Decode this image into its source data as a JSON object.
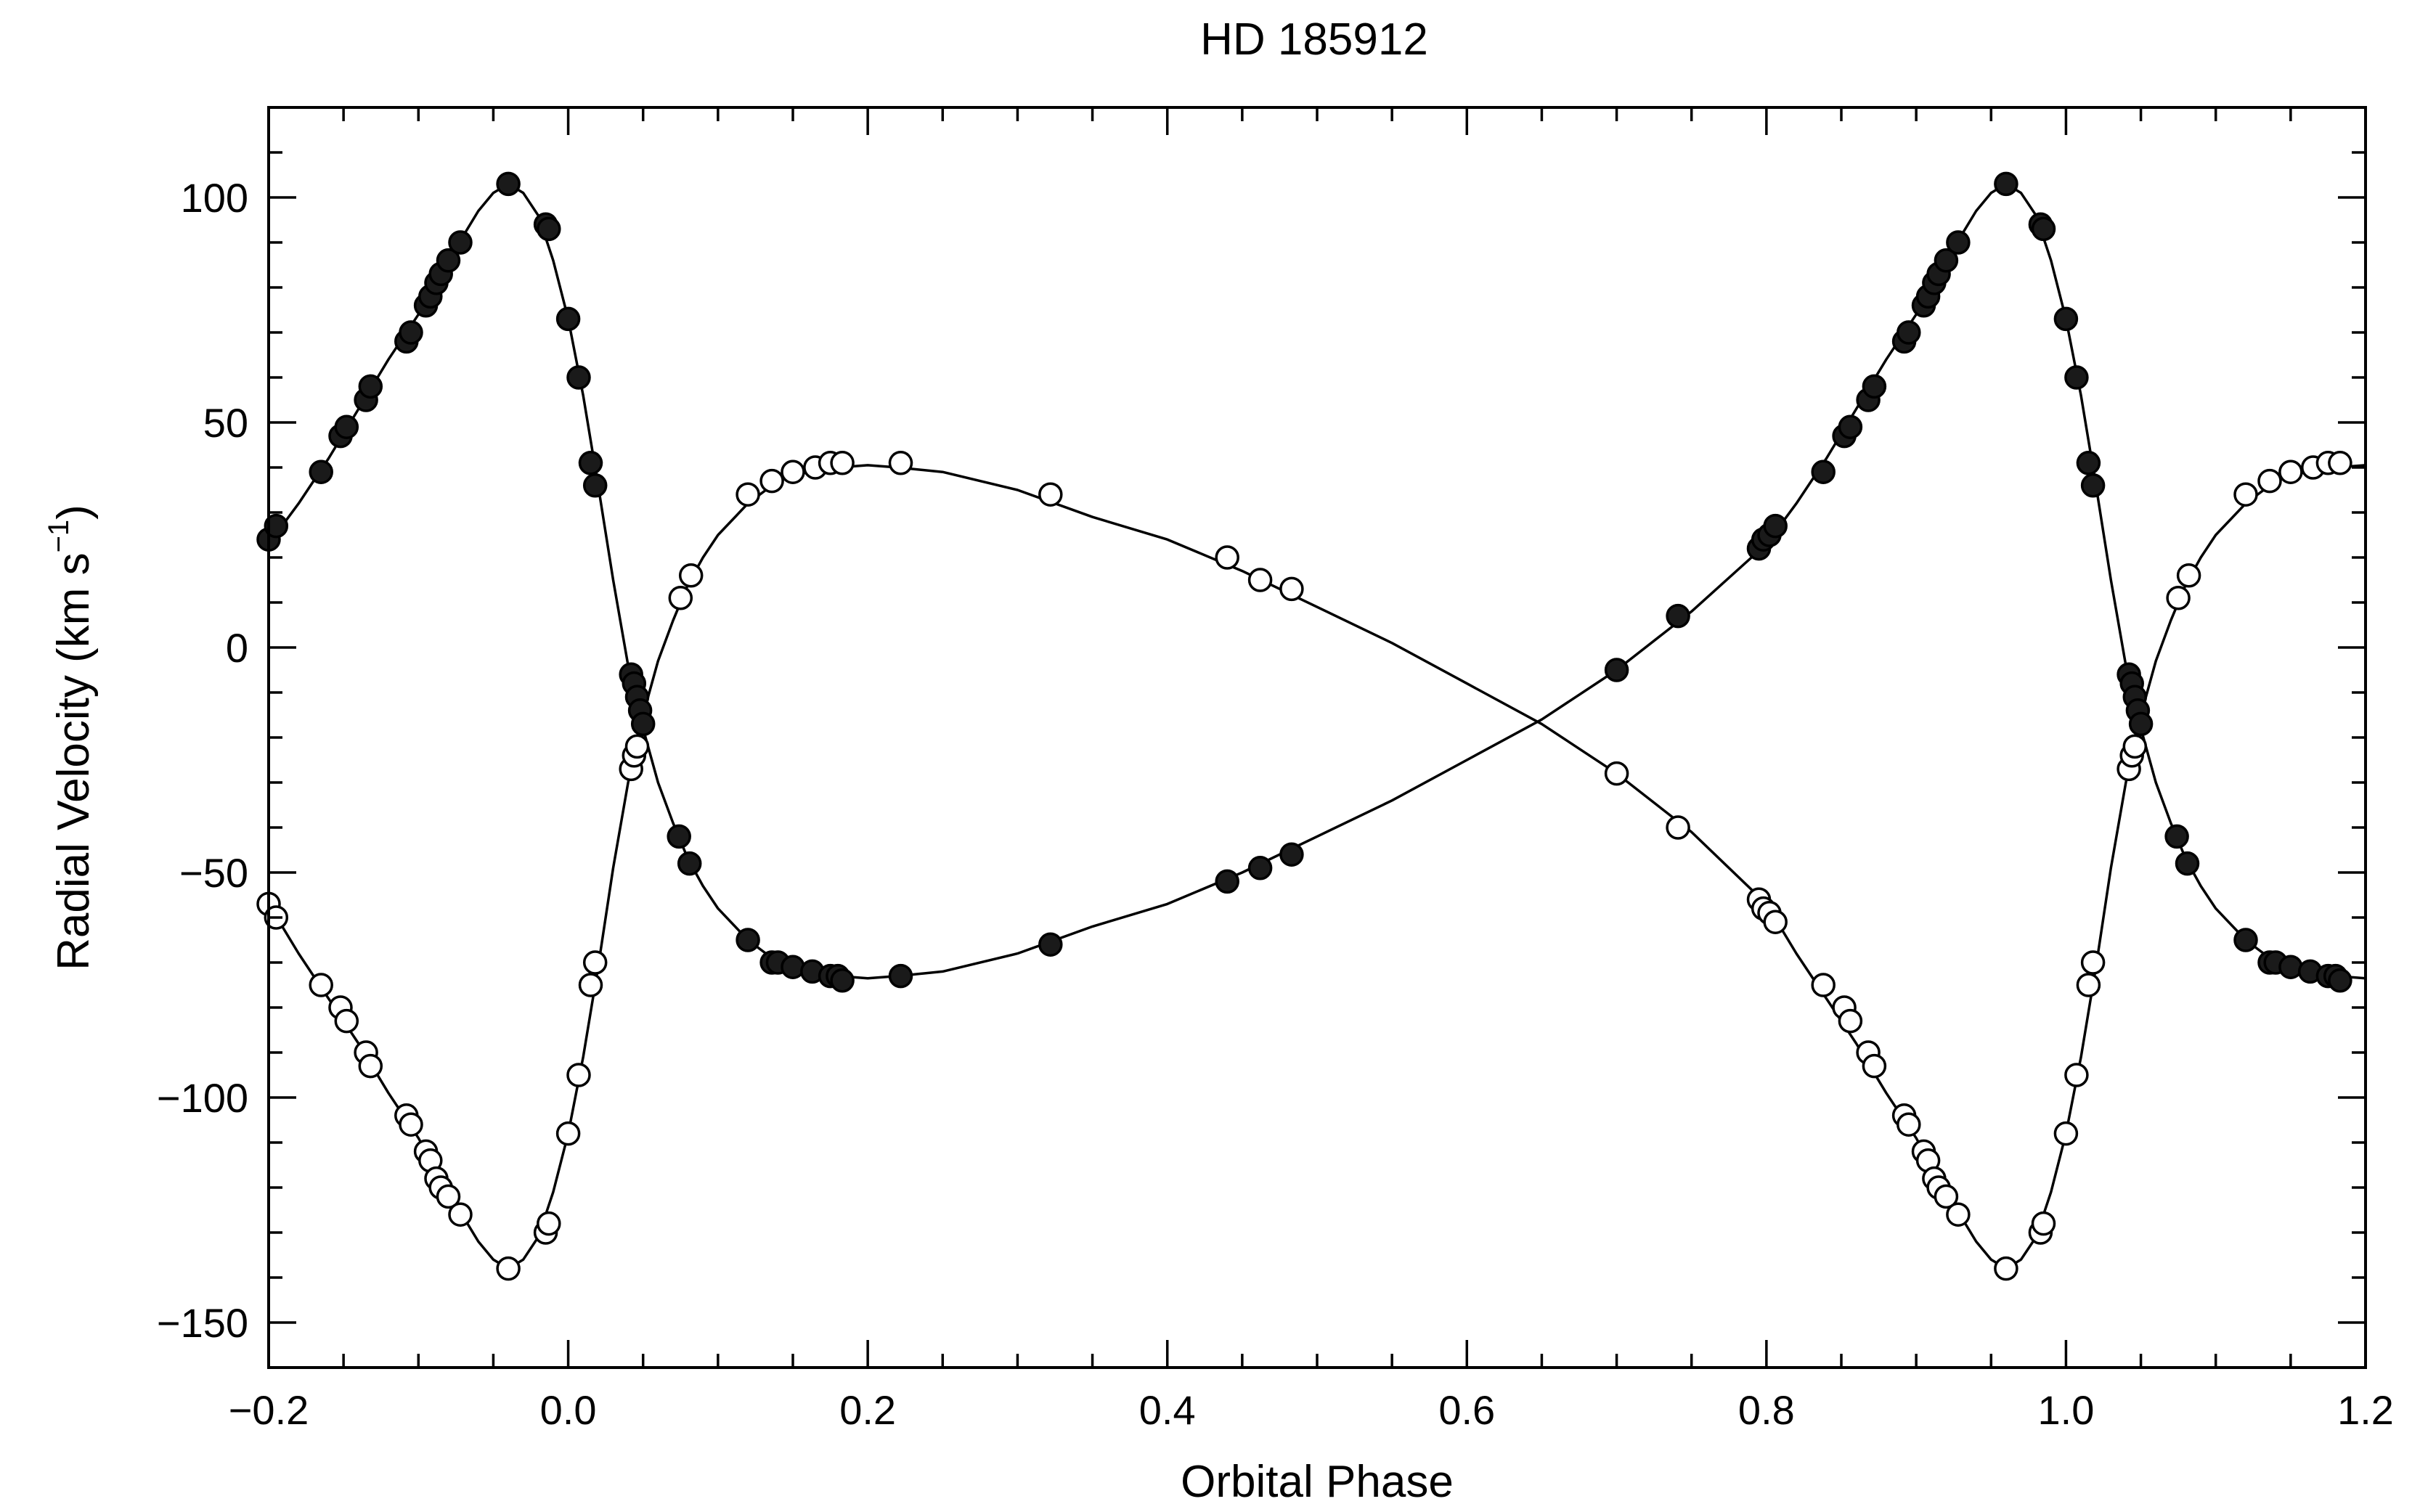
{
  "chart_data": {
    "type": "scatter",
    "title": "HD 185912",
    "xlabel": "Orbital Phase",
    "ylabel": "Radial Velocity (km s",
    "ylabel_sup": "−1",
    "ylabel_close": ")",
    "xlim": [
      -0.2,
      1.2
    ],
    "ylim": [
      -160,
      120
    ],
    "x_ticks": [
      -0.2,
      0.0,
      0.2,
      0.4,
      0.6,
      0.8,
      1.0,
      1.2
    ],
    "x_tick_labels": [
      "−0.2",
      "0.0",
      "0.2",
      "0.4",
      "0.6",
      "0.8",
      "1.0",
      "1.2"
    ],
    "y_ticks": [
      -150,
      -100,
      -50,
      0,
      50,
      100
    ],
    "y_tick_labels": [
      "−150",
      "−100",
      "−50",
      "0",
      "50",
      "100"
    ],
    "grid": false,
    "legend": "none",
    "series": [
      {
        "marker": "filled-circle",
        "color": "#1a1a1a",
        "points": [
          [
            -0.2,
            24
          ],
          [
            -0.195,
            27
          ],
          [
            -0.165,
            39
          ],
          [
            -0.152,
            47
          ],
          [
            -0.148,
            49
          ],
          [
            -0.135,
            55
          ],
          [
            -0.132,
            58
          ],
          [
            -0.108,
            68
          ],
          [
            -0.105,
            70
          ],
          [
            -0.095,
            76
          ],
          [
            -0.092,
            78
          ],
          [
            -0.088,
            81
          ],
          [
            -0.085,
            83
          ],
          [
            -0.08,
            86
          ],
          [
            -0.072,
            90
          ],
          [
            -0.04,
            103
          ],
          [
            -0.015,
            94
          ],
          [
            -0.013,
            93
          ],
          [
            0.0,
            73
          ],
          [
            0.007,
            60
          ],
          [
            0.015,
            41
          ],
          [
            0.018,
            36
          ],
          [
            0.042,
            -6
          ],
          [
            0.044,
            -8
          ],
          [
            0.046,
            -11
          ],
          [
            0.048,
            -14
          ],
          [
            0.05,
            -17
          ],
          [
            0.074,
            -42
          ],
          [
            0.081,
            -48
          ],
          [
            0.12,
            -65
          ],
          [
            0.136,
            -70
          ],
          [
            0.14,
            -70
          ],
          [
            0.15,
            -71
          ],
          [
            0.163,
            -72
          ],
          [
            0.175,
            -73
          ],
          [
            0.18,
            -73
          ],
          [
            0.183,
            -74
          ],
          [
            0.222,
            -73
          ],
          [
            0.322,
            -66
          ],
          [
            0.44,
            -52
          ],
          [
            0.462,
            -49
          ],
          [
            0.483,
            -46
          ],
          [
            0.7,
            -5
          ],
          [
            0.741,
            7
          ],
          [
            0.795,
            22
          ],
          [
            0.798,
            24
          ],
          [
            0.802,
            25
          ],
          [
            0.806,
            27
          ],
          [
            0.838,
            39
          ],
          [
            0.852,
            47
          ],
          [
            0.856,
            49
          ],
          [
            0.868,
            55
          ],
          [
            0.872,
            58
          ],
          [
            0.892,
            68
          ],
          [
            0.895,
            70
          ],
          [
            0.905,
            76
          ],
          [
            0.908,
            78
          ],
          [
            0.912,
            81
          ],
          [
            0.915,
            83
          ],
          [
            0.92,
            86
          ],
          [
            0.928,
            90
          ],
          [
            0.96,
            103
          ],
          [
            0.983,
            94
          ],
          [
            0.985,
            93
          ],
          [
            1.0,
            73
          ],
          [
            1.007,
            60
          ],
          [
            1.015,
            41
          ],
          [
            1.018,
            36
          ],
          [
            1.042,
            -6
          ],
          [
            1.044,
            -8
          ],
          [
            1.046,
            -11
          ],
          [
            1.048,
            -14
          ],
          [
            1.05,
            -17
          ],
          [
            1.074,
            -42
          ],
          [
            1.081,
            -48
          ],
          [
            1.12,
            -65
          ],
          [
            1.136,
            -70
          ],
          [
            1.14,
            -70
          ],
          [
            1.15,
            -71
          ],
          [
            1.163,
            -72
          ],
          [
            1.175,
            -73
          ],
          [
            1.18,
            -73
          ],
          [
            1.183,
            -74
          ]
        ]
      },
      {
        "marker": "open-circle",
        "color": "#000000",
        "points": [
          [
            -0.2,
            -57
          ],
          [
            -0.195,
            -60
          ],
          [
            -0.165,
            -75
          ],
          [
            -0.152,
            -80
          ],
          [
            -0.148,
            -83
          ],
          [
            -0.135,
            -90
          ],
          [
            -0.132,
            -93
          ],
          [
            -0.108,
            -104
          ],
          [
            -0.105,
            -106
          ],
          [
            -0.095,
            -112
          ],
          [
            -0.092,
            -114
          ],
          [
            -0.088,
            -118
          ],
          [
            -0.085,
            -120
          ],
          [
            -0.08,
            -122
          ],
          [
            -0.072,
            -126
          ],
          [
            -0.04,
            -138
          ],
          [
            -0.015,
            -130
          ],
          [
            -0.013,
            -128
          ],
          [
            0.0,
            -108
          ],
          [
            0.007,
            -95
          ],
          [
            0.015,
            -75
          ],
          [
            0.018,
            -70
          ],
          [
            0.042,
            -27
          ],
          [
            0.044,
            -24
          ],
          [
            0.046,
            -22
          ],
          [
            0.075,
            11
          ],
          [
            0.082,
            16
          ],
          [
            0.12,
            34
          ],
          [
            0.136,
            37
          ],
          [
            0.15,
            39
          ],
          [
            0.165,
            40
          ],
          [
            0.175,
            41
          ],
          [
            0.183,
            41
          ],
          [
            0.222,
            41
          ],
          [
            0.322,
            34
          ],
          [
            0.44,
            20
          ],
          [
            0.462,
            15
          ],
          [
            0.483,
            13
          ],
          [
            0.7,
            -28
          ],
          [
            0.741,
            -40
          ],
          [
            0.795,
            -56
          ],
          [
            0.798,
            -58
          ],
          [
            0.802,
            -59
          ],
          [
            0.806,
            -61
          ],
          [
            0.838,
            -75
          ],
          [
            0.852,
            -80
          ],
          [
            0.856,
            -83
          ],
          [
            0.868,
            -90
          ],
          [
            0.872,
            -93
          ],
          [
            0.892,
            -104
          ],
          [
            0.895,
            -106
          ],
          [
            0.905,
            -112
          ],
          [
            0.908,
            -114
          ],
          [
            0.912,
            -118
          ],
          [
            0.915,
            -120
          ],
          [
            0.92,
            -122
          ],
          [
            0.928,
            -126
          ],
          [
            0.96,
            -138
          ],
          [
            0.983,
            -130
          ],
          [
            0.985,
            -128
          ],
          [
            1.0,
            -108
          ],
          [
            1.007,
            -95
          ],
          [
            1.015,
            -75
          ],
          [
            1.018,
            -70
          ],
          [
            1.042,
            -27
          ],
          [
            1.044,
            -24
          ],
          [
            1.046,
            -22
          ],
          [
            1.075,
            11
          ],
          [
            1.082,
            16
          ],
          [
            1.12,
            34
          ],
          [
            1.136,
            37
          ],
          [
            1.15,
            39
          ],
          [
            1.165,
            40
          ],
          [
            1.175,
            41
          ],
          [
            1.183,
            41
          ]
        ]
      }
    ],
    "curves": [
      {
        "color": "#000000",
        "points": [
          [
            -0.2,
            23
          ],
          [
            -0.18,
            32
          ],
          [
            -0.16,
            42
          ],
          [
            -0.14,
            53
          ],
          [
            -0.12,
            64
          ],
          [
            -0.1,
            74
          ],
          [
            -0.08,
            86
          ],
          [
            -0.06,
            97
          ],
          [
            -0.05,
            101
          ],
          [
            -0.04,
            103
          ],
          [
            -0.03,
            101
          ],
          [
            -0.02,
            96
          ],
          [
            -0.01,
            86
          ],
          [
            0.0,
            73
          ],
          [
            0.01,
            56
          ],
          [
            0.02,
            36
          ],
          [
            0.03,
            15
          ],
          [
            0.04,
            -4
          ],
          [
            0.05,
            -18
          ],
          [
            0.06,
            -30
          ],
          [
            0.07,
            -39
          ],
          [
            0.08,
            -47
          ],
          [
            0.09,
            -53
          ],
          [
            0.1,
            -58
          ],
          [
            0.12,
            -65
          ],
          [
            0.14,
            -70
          ],
          [
            0.16,
            -72
          ],
          [
            0.18,
            -73
          ],
          [
            0.2,
            -73.5
          ],
          [
            0.22,
            -73
          ],
          [
            0.25,
            -72
          ],
          [
            0.3,
            -68
          ],
          [
            0.35,
            -62
          ],
          [
            0.4,
            -57
          ],
          [
            0.45,
            -50
          ],
          [
            0.5,
            -42
          ],
          [
            0.55,
            -34
          ],
          [
            0.6,
            -25
          ],
          [
            0.65,
            -16
          ],
          [
            0.7,
            -5
          ],
          [
            0.75,
            8
          ],
          [
            0.8,
            23
          ],
          [
            0.82,
            32
          ],
          [
            0.84,
            42
          ],
          [
            0.86,
            53
          ],
          [
            0.88,
            64
          ],
          [
            0.9,
            74
          ],
          [
            0.92,
            86
          ],
          [
            0.94,
            97
          ],
          [
            0.95,
            101
          ],
          [
            0.96,
            103
          ],
          [
            0.97,
            101
          ],
          [
            0.98,
            96
          ],
          [
            0.99,
            86
          ],
          [
            1.0,
            73
          ],
          [
            1.01,
            56
          ],
          [
            1.02,
            36
          ],
          [
            1.03,
            15
          ],
          [
            1.04,
            -4
          ],
          [
            1.05,
            -18
          ],
          [
            1.06,
            -30
          ],
          [
            1.07,
            -39
          ],
          [
            1.08,
            -47
          ],
          [
            1.09,
            -53
          ],
          [
            1.1,
            -58
          ],
          [
            1.12,
            -65
          ],
          [
            1.14,
            -70
          ],
          [
            1.16,
            -72
          ],
          [
            1.18,
            -73
          ],
          [
            1.2,
            -73.5
          ]
        ]
      },
      {
        "color": "#000000",
        "points": [
          [
            -0.2,
            -57
          ],
          [
            -0.18,
            -68
          ],
          [
            -0.16,
            -78
          ],
          [
            -0.14,
            -88
          ],
          [
            -0.12,
            -99
          ],
          [
            -0.1,
            -109
          ],
          [
            -0.08,
            -121
          ],
          [
            -0.06,
            -132
          ],
          [
            -0.05,
            -136
          ],
          [
            -0.04,
            -138
          ],
          [
            -0.03,
            -136
          ],
          [
            -0.02,
            -131
          ],
          [
            -0.01,
            -121
          ],
          [
            0.0,
            -108
          ],
          [
            0.01,
            -91
          ],
          [
            0.02,
            -71
          ],
          [
            0.03,
            -49
          ],
          [
            0.04,
            -30
          ],
          [
            0.05,
            -15
          ],
          [
            0.06,
            -3
          ],
          [
            0.07,
            6
          ],
          [
            0.08,
            14
          ],
          [
            0.09,
            20
          ],
          [
            0.1,
            25
          ],
          [
            0.12,
            32
          ],
          [
            0.14,
            37
          ],
          [
            0.16,
            39
          ],
          [
            0.18,
            40
          ],
          [
            0.2,
            40.5
          ],
          [
            0.22,
            40
          ],
          [
            0.25,
            39
          ],
          [
            0.3,
            35
          ],
          [
            0.35,
            29
          ],
          [
            0.4,
            24
          ],
          [
            0.45,
            17
          ],
          [
            0.5,
            9
          ],
          [
            0.55,
            1
          ],
          [
            0.6,
            -8
          ],
          [
            0.65,
            -17
          ],
          [
            0.7,
            -28
          ],
          [
            0.75,
            -41
          ],
          [
            0.8,
            -57
          ],
          [
            0.82,
            -68
          ],
          [
            0.84,
            -78
          ],
          [
            0.86,
            -88
          ],
          [
            0.88,
            -99
          ],
          [
            0.9,
            -109
          ],
          [
            0.92,
            -121
          ],
          [
            0.94,
            -132
          ],
          [
            0.95,
            -136
          ],
          [
            0.96,
            -138
          ],
          [
            0.97,
            -136
          ],
          [
            0.98,
            -131
          ],
          [
            0.99,
            -121
          ],
          [
            1.0,
            -108
          ],
          [
            1.01,
            -91
          ],
          [
            1.02,
            -71
          ],
          [
            1.03,
            -49
          ],
          [
            1.04,
            -30
          ],
          [
            1.05,
            -15
          ],
          [
            1.06,
            -3
          ],
          [
            1.07,
            6
          ],
          [
            1.08,
            14
          ],
          [
            1.09,
            20
          ],
          [
            1.1,
            25
          ],
          [
            1.12,
            32
          ],
          [
            1.14,
            37
          ],
          [
            1.16,
            39
          ],
          [
            1.18,
            40
          ],
          [
            1.2,
            40.5
          ]
        ]
      }
    ]
  }
}
